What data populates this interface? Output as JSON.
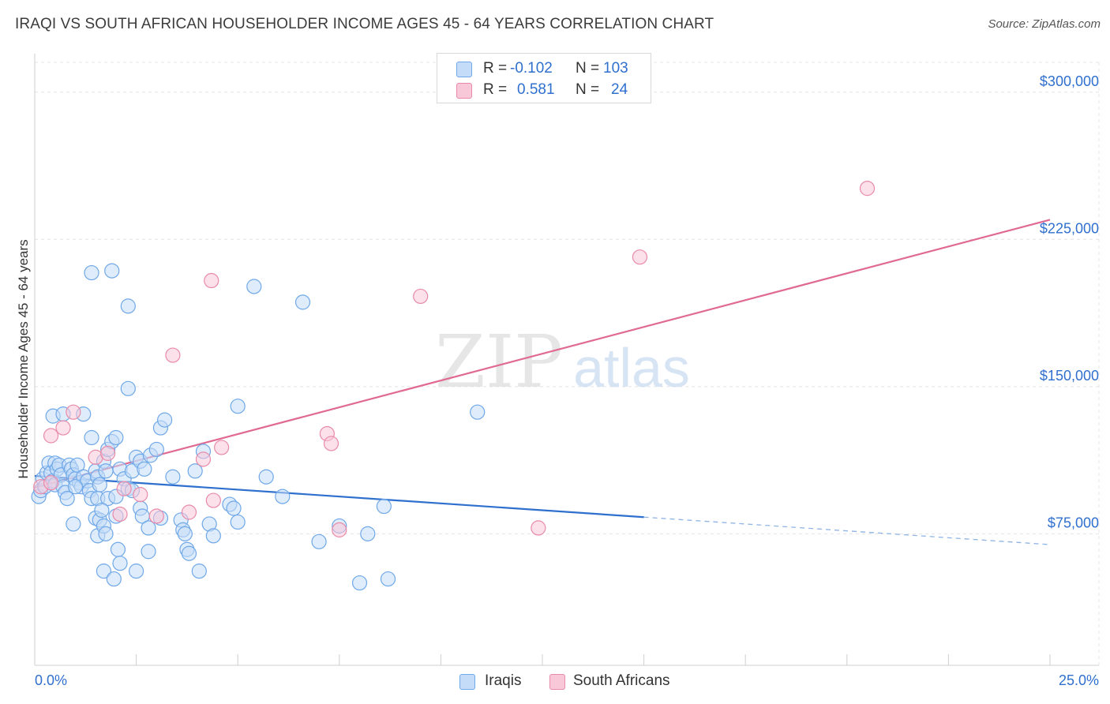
{
  "title": "IRAQI VS SOUTH AFRICAN HOUSEHOLDER INCOME AGES 45 - 64 YEARS CORRELATION CHART",
  "source": "Source: ZipAtlas.com",
  "watermark": {
    "zip": "ZIP",
    "atlas": "atlas"
  },
  "legend": {
    "rows": [
      {
        "r_label": "R = ",
        "r_value": "-0.102",
        "n_label": "N = ",
        "n_value": "103",
        "color": "#6fa8e8",
        "fill": "#c4dcf7"
      },
      {
        "r_label": "R = ",
        "r_value": "0.581",
        "n_label": "N = ",
        "n_value": "24",
        "color": "#e88aa8",
        "fill": "#f9c8d8"
      }
    ]
  },
  "bottom_legend": [
    "Iraqis",
    "South Africans"
  ],
  "chart_data": {
    "type": "scatter",
    "title": "IRAQI VS SOUTH AFRICAN HOUSEHOLDER INCOME AGES 45 - 64 YEARS CORRELATION CHART",
    "xlabel": "",
    "ylabel": "Householder Income Ages 45 - 64 years",
    "xlim": [
      0,
      25
    ],
    "ylim": [
      8000,
      318000
    ],
    "x_tick_labels": [
      "0.0%",
      "25.0%"
    ],
    "y_ticks": [
      75000,
      150000,
      225000,
      300000
    ],
    "y_tick_labels": [
      "$75,000",
      "$150,000",
      "$225,000",
      "$300,000"
    ],
    "grid": true,
    "series": [
      {
        "name": "Iraqis",
        "color": "#6fa8e8",
        "fill": "#c4dcf7",
        "trend": {
          "x0": 0,
          "y0": 104500,
          "x1": 15.0,
          "y1": 83500,
          "dashed_to_x": 25,
          "dashed_to_y": 69500
        },
        "points": [
          [
            0.1,
            94
          ],
          [
            0.15,
            97
          ],
          [
            0.2,
            103
          ],
          [
            0.25,
            99
          ],
          [
            0.3,
            106
          ],
          [
            0.35,
            111
          ],
          [
            0.4,
            106
          ],
          [
            0.45,
            102
          ],
          [
            0.5,
            111
          ],
          [
            0.5,
            100
          ],
          [
            0.55,
            108
          ],
          [
            0.6,
            110
          ],
          [
            0.65,
            105
          ],
          [
            0.7,
            99
          ],
          [
            0.75,
            96
          ],
          [
            0.8,
            93
          ],
          [
            0.85,
            110
          ],
          [
            0.9,
            108
          ],
          [
            0.95,
            105
          ],
          [
            1.0,
            103
          ],
          [
            1.05,
            110
          ],
          [
            1.1,
            101
          ],
          [
            1.15,
            99
          ],
          [
            1.2,
            104
          ],
          [
            1.3,
            102
          ],
          [
            1.35,
            97
          ],
          [
            1.4,
            93
          ],
          [
            1.5,
            107
          ],
          [
            1.55,
            104
          ],
          [
            1.6,
            100
          ],
          [
            1.7,
            112
          ],
          [
            1.75,
            107
          ],
          [
            1.8,
            118
          ],
          [
            1.9,
            122
          ],
          [
            2.0,
            124
          ],
          [
            2.1,
            108
          ],
          [
            2.2,
            103
          ],
          [
            2.3,
            98
          ],
          [
            2.4,
            107
          ],
          [
            2.5,
            114
          ],
          [
            2.6,
            112
          ],
          [
            2.7,
            108
          ],
          [
            2.85,
            115
          ],
          [
            3.0,
            118
          ],
          [
            0.45,
            135
          ],
          [
            0.7,
            136
          ],
          [
            1.2,
            136
          ],
          [
            1.0,
            99
          ],
          [
            1.55,
            93
          ],
          [
            1.8,
            93
          ],
          [
            2.0,
            94
          ],
          [
            2.4,
            97
          ],
          [
            3.1,
            129
          ],
          [
            3.2,
            133
          ],
          [
            2.3,
            149
          ],
          [
            1.4,
            208
          ],
          [
            1.9,
            209
          ],
          [
            2.3,
            191
          ],
          [
            5.4,
            201
          ],
          [
            6.6,
            193
          ],
          [
            1.5,
            83
          ],
          [
            1.55,
            74
          ],
          [
            1.6,
            82
          ],
          [
            1.65,
            87
          ],
          [
            1.7,
            79
          ],
          [
            1.75,
            75
          ],
          [
            2.0,
            84
          ],
          [
            2.05,
            67
          ],
          [
            2.1,
            60
          ],
          [
            2.6,
            88
          ],
          [
            2.65,
            84
          ],
          [
            2.8,
            78
          ],
          [
            3.1,
            83
          ],
          [
            3.6,
            82
          ],
          [
            3.65,
            77
          ],
          [
            3.7,
            75
          ],
          [
            3.75,
            67
          ],
          [
            3.8,
            65
          ],
          [
            4.3,
            80
          ],
          [
            4.4,
            74
          ],
          [
            4.8,
            90
          ],
          [
            4.9,
            88
          ],
          [
            5.0,
            81
          ],
          [
            5.7,
            104
          ],
          [
            6.1,
            94
          ],
          [
            7.0,
            71
          ],
          [
            7.5,
            79
          ],
          [
            8.0,
            50
          ],
          [
            8.2,
            75
          ],
          [
            8.6,
            89
          ],
          [
            8.7,
            52
          ],
          [
            10.9,
            137
          ],
          [
            1.7,
            56
          ],
          [
            1.95,
            52
          ],
          [
            2.5,
            56
          ],
          [
            2.8,
            66
          ],
          [
            4.05,
            56
          ],
          [
            5.0,
            140
          ],
          [
            1.4,
            124
          ],
          [
            0.95,
            80
          ],
          [
            3.4,
            104
          ],
          [
            3.95,
            107
          ],
          [
            4.15,
            117
          ]
        ]
      },
      {
        "name": "South Africans",
        "color": "#e88aa8",
        "fill": "#f9c8d8",
        "trend": {
          "x0": 0,
          "y0": 98500,
          "x1": 25,
          "y1": 235000
        },
        "points": [
          [
            0.15,
            99
          ],
          [
            0.4,
            101
          ],
          [
            0.4,
            125
          ],
          [
            0.7,
            129
          ],
          [
            0.95,
            137
          ],
          [
            1.5,
            114
          ],
          [
            1.8,
            116
          ],
          [
            2.1,
            85
          ],
          [
            2.2,
            98
          ],
          [
            2.6,
            95
          ],
          [
            3.0,
            84
          ],
          [
            3.4,
            166
          ],
          [
            3.8,
            86
          ],
          [
            4.15,
            113
          ],
          [
            4.35,
            204
          ],
          [
            4.4,
            92
          ],
          [
            4.6,
            119
          ],
          [
            7.2,
            126
          ],
          [
            7.3,
            121
          ],
          [
            7.5,
            77
          ],
          [
            9.5,
            196
          ],
          [
            12.4,
            78
          ],
          [
            14.9,
            216
          ],
          [
            20.5,
            251
          ]
        ]
      }
    ]
  }
}
